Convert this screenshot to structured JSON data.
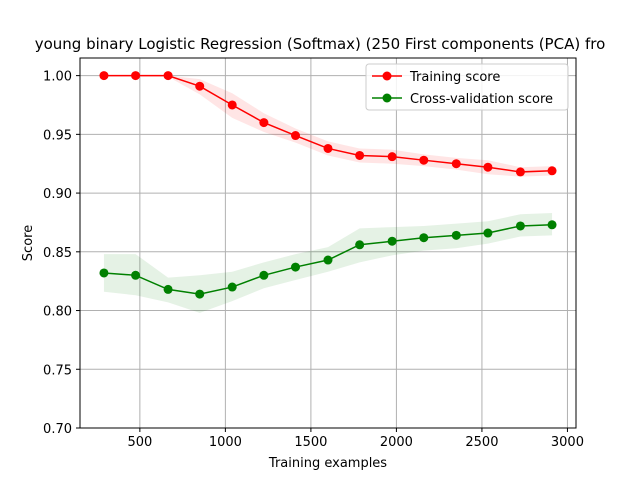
{
  "chart_data": {
    "type": "line",
    "title": "young binary Logistic Regression (Softmax) (250 First components (PCA) fro",
    "xlabel": "Training examples",
    "ylabel": "Score",
    "xlim": [
      150,
      3050
    ],
    "ylim": [
      0.7,
      1.015
    ],
    "x_ticks": [
      500,
      1000,
      1500,
      2000,
      2500,
      3000
    ],
    "y_ticks": [
      0.7,
      0.75,
      0.8,
      0.85,
      0.9,
      0.95,
      1.0
    ],
    "x_tick_labels": [
      "500",
      "1000",
      "1500",
      "2000",
      "2500",
      "3000"
    ],
    "y_tick_labels": [
      "0.70",
      "0.75",
      "0.80",
      "0.85",
      "0.90",
      "0.95",
      "1.00"
    ],
    "grid": true,
    "legend_position": "upper-right",
    "x": [
      290,
      475,
      665,
      850,
      1040,
      1225,
      1410,
      1600,
      1785,
      1975,
      2160,
      2350,
      2535,
      2725,
      2910
    ],
    "series": [
      {
        "name": "Training score",
        "color": "#ff0000",
        "values": [
          1.0,
          1.0,
          1.0,
          0.991,
          0.975,
          0.96,
          0.949,
          0.938,
          0.932,
          0.931,
          0.928,
          0.925,
          0.922,
          0.918,
          0.919
        ],
        "band_low": [
          1.0,
          1.0,
          0.999,
          0.984,
          0.964,
          0.952,
          0.943,
          0.932,
          0.926,
          0.925,
          0.923,
          0.92,
          0.916,
          0.914,
          0.915
        ],
        "band_high": [
          1.0,
          1.0,
          1.0,
          0.997,
          0.985,
          0.968,
          0.955,
          0.944,
          0.938,
          0.937,
          0.933,
          0.93,
          0.928,
          0.922,
          0.923
        ]
      },
      {
        "name": "Cross-validation score",
        "color": "#008000",
        "values": [
          0.832,
          0.83,
          0.818,
          0.814,
          0.82,
          0.83,
          0.837,
          0.843,
          0.856,
          0.859,
          0.862,
          0.864,
          0.866,
          0.872,
          0.873
        ],
        "band_low": [
          0.816,
          0.813,
          0.807,
          0.798,
          0.808,
          0.819,
          0.826,
          0.833,
          0.841,
          0.847,
          0.851,
          0.853,
          0.857,
          0.863,
          0.864
        ],
        "band_high": [
          0.848,
          0.848,
          0.828,
          0.83,
          0.833,
          0.841,
          0.848,
          0.854,
          0.87,
          0.871,
          0.872,
          0.874,
          0.876,
          0.882,
          0.883
        ]
      }
    ]
  }
}
